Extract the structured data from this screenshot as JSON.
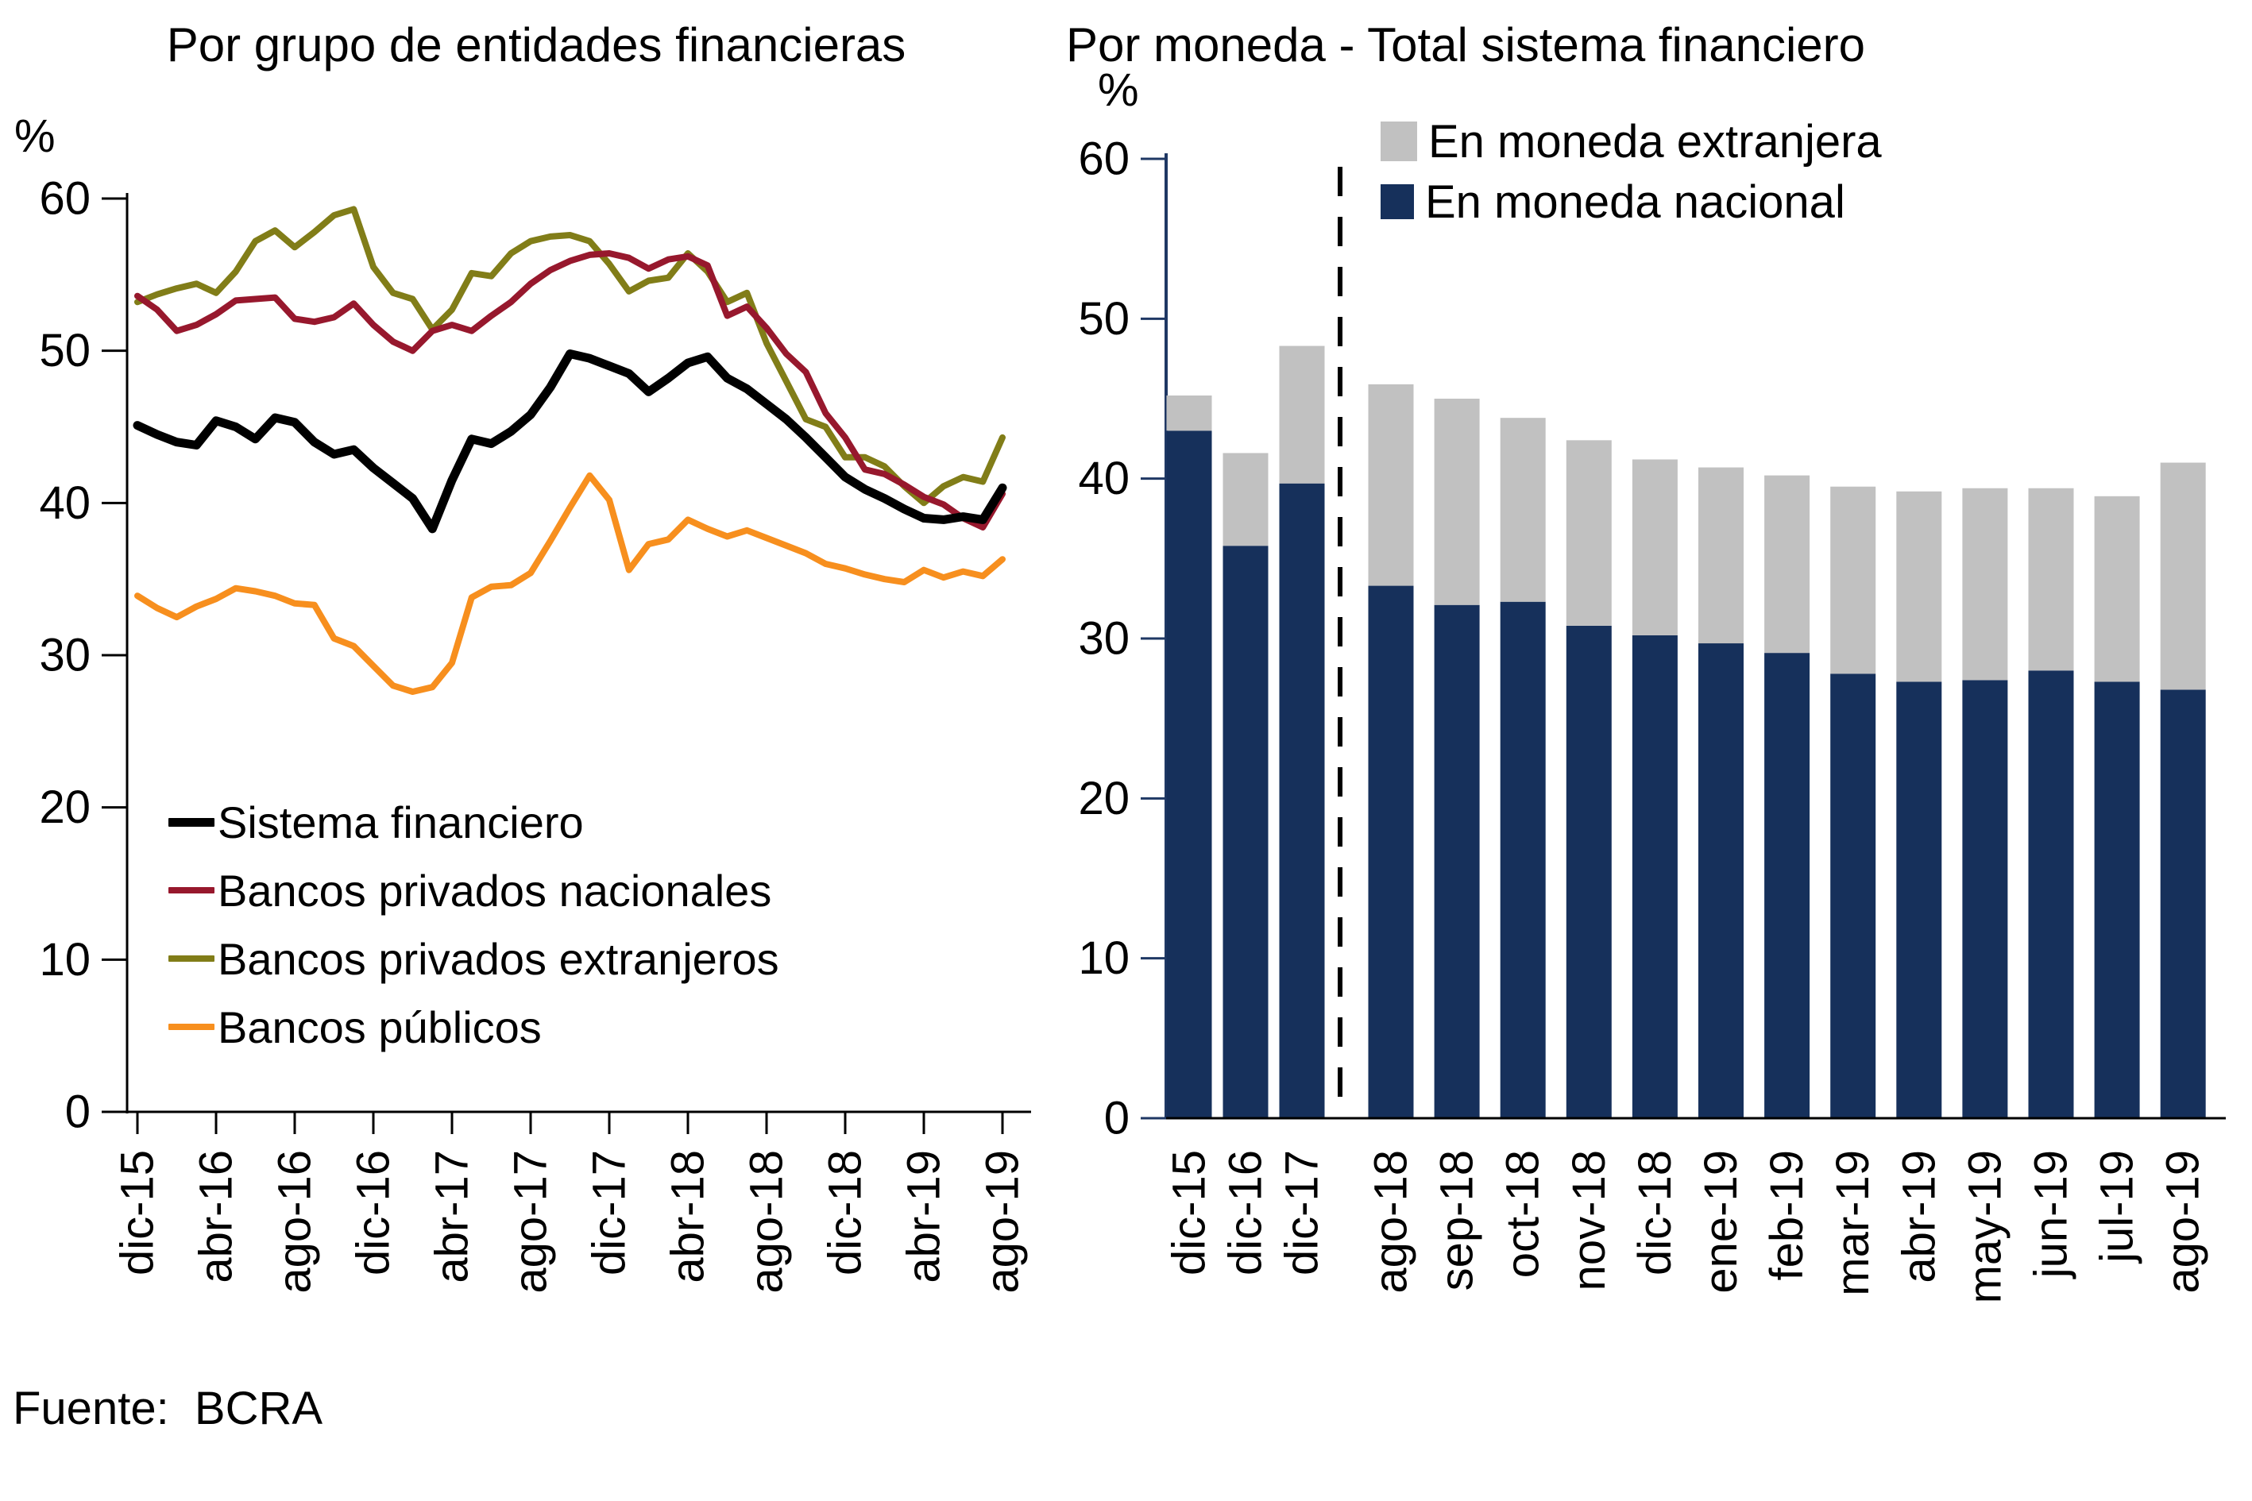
{
  "source": "Fuente:  BCRA",
  "chart_data": [
    {
      "type": "line",
      "title": "Por grupo de entidades financieras",
      "ylabel": "%",
      "ylim": [
        0,
        60
      ],
      "y_ticks": [
        60,
        50,
        40,
        30,
        20,
        10,
        0
      ],
      "n_points": 45,
      "x_tick_every": 4,
      "x_tick_labels": [
        "dic-15",
        "abr-16",
        "ago-16",
        "dic-16",
        "abr-17",
        "ago-17",
        "dic-17",
        "abr-18",
        "ago-18",
        "dic-18",
        "abr-19",
        "ago-19"
      ],
      "grid": false,
      "legend_position": "inside-bottom-left",
      "series": [
        {
          "name": "Sistema financiero",
          "color": "#000000",
          "stroke_width": 11,
          "values": [
            45.1,
            44.5,
            44.0,
            43.8,
            45.4,
            45.0,
            44.2,
            45.6,
            45.3,
            44.0,
            43.2,
            43.5,
            42.3,
            41.3,
            40.3,
            38.3,
            41.5,
            44.2,
            43.9,
            44.7,
            45.8,
            47.6,
            49.8,
            49.5,
            49.0,
            48.5,
            47.3,
            48.2,
            49.2,
            49.6,
            48.2,
            47.5,
            46.5,
            45.5,
            44.3,
            43.0,
            41.7,
            40.9,
            40.3,
            39.6,
            39.0,
            38.9,
            39.1,
            38.9,
            41.0
          ]
        },
        {
          "name": "Bancos privados nacionales",
          "color": "#97182d",
          "stroke_width": 8,
          "values": [
            53.6,
            52.7,
            51.3,
            51.7,
            52.4,
            53.3,
            53.4,
            53.5,
            52.1,
            51.9,
            52.2,
            53.1,
            51.7,
            50.6,
            50.0,
            51.3,
            51.7,
            51.3,
            52.3,
            53.2,
            54.4,
            55.3,
            55.9,
            56.3,
            56.4,
            56.1,
            55.4,
            56.0,
            56.2,
            55.6,
            52.3,
            52.9,
            51.5,
            49.8,
            48.6,
            45.9,
            44.3,
            42.2,
            41.9,
            41.2,
            40.4,
            39.9,
            39.0,
            38.4,
            40.6
          ]
        },
        {
          "name": "Bancos privados extranjeros",
          "color": "#817d18",
          "stroke_width": 8,
          "values": [
            53.2,
            53.7,
            54.1,
            54.4,
            53.8,
            55.2,
            57.2,
            57.9,
            56.8,
            57.8,
            58.9,
            59.3,
            55.5,
            53.8,
            53.4,
            51.4,
            52.7,
            55.1,
            54.9,
            56.4,
            57.2,
            57.5,
            57.6,
            57.2,
            55.7,
            53.9,
            54.6,
            54.8,
            56.4,
            55.2,
            53.2,
            53.8,
            50.5,
            48.0,
            45.5,
            45.0,
            43.0,
            43.0,
            42.4,
            41.1,
            40.0,
            41.1,
            41.7,
            41.4,
            44.3
          ]
        },
        {
          "name": "Bancos públicos",
          "color": "#f78f1e",
          "stroke_width": 8,
          "values": [
            33.9,
            33.1,
            32.5,
            33.2,
            33.7,
            34.4,
            34.2,
            33.9,
            33.4,
            33.3,
            31.1,
            30.6,
            29.3,
            28.0,
            27.6,
            27.9,
            29.5,
            33.8,
            34.5,
            34.6,
            35.4,
            37.5,
            39.7,
            41.8,
            40.2,
            35.6,
            37.3,
            37.6,
            38.9,
            38.3,
            37.8,
            38.2,
            37.7,
            37.2,
            36.7,
            36.0,
            35.7,
            35.3,
            35.0,
            34.8,
            35.6,
            35.1,
            35.5,
            35.2,
            36.3
          ]
        }
      ]
    },
    {
      "type": "bar",
      "stacked": true,
      "title": "Por moneda - Total sistema financiero",
      "ylabel": "%",
      "ylim": [
        0,
        60
      ],
      "y_ticks": [
        60,
        50,
        40,
        30,
        20,
        10,
        0
      ],
      "grid": false,
      "axis_color": "#1f3864",
      "separator_after_index": 2,
      "legend_position": "inside-top",
      "categories": [
        "dic-15",
        "dic-16",
        "dic-17",
        "ago-18",
        "sep-18",
        "oct-18",
        "nov-18",
        "dic-18",
        "ene-19",
        "feb-19",
        "mar-19",
        "abr-19",
        "may-19",
        "jun-19",
        "jul-19",
        "ago-19"
      ],
      "series": [
        {
          "name": "En moneda nacional",
          "color": "#16305b",
          "values": [
            43.0,
            35.8,
            39.7,
            33.3,
            32.1,
            32.3,
            30.8,
            30.2,
            29.7,
            29.1,
            27.8,
            27.3,
            27.4,
            28.0,
            27.3,
            26.8
          ]
        },
        {
          "name": "En moneda extranjera",
          "color": "#c1c1c1",
          "values": [
            2.2,
            5.8,
            8.6,
            12.6,
            12.9,
            11.5,
            11.6,
            11.0,
            11.0,
            11.1,
            11.7,
            11.9,
            12.0,
            11.4,
            11.6,
            14.2
          ]
        }
      ],
      "legend": [
        {
          "label": "En moneda extranjera",
          "color": "#c1c1c1"
        },
        {
          "label": "En moneda nacional",
          "color": "#16305b"
        }
      ]
    }
  ]
}
